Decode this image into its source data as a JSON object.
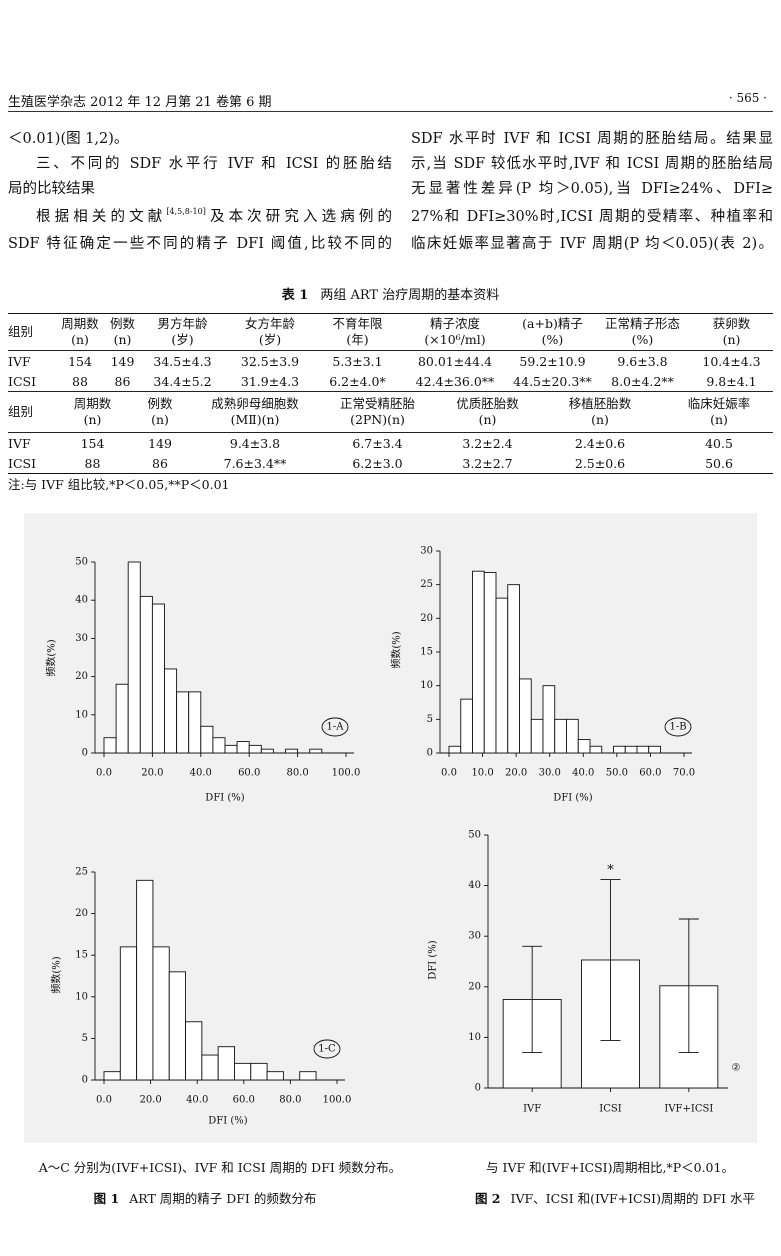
{
  "header": {
    "journal": "生殖医学杂志 2012 年 12 月第 21 卷第 6 期",
    "page": "· 565 ·"
  },
  "body": {
    "left": [
      "＜0.01)(图 1,2)。",
      "三、不同的 SDF 水平行 IVF 和 ICSI 的胚胎结",
      "局的比较结果",
      {
        "before": "根据相关的文献",
        "ref": "[4,5,8-10]",
        "after": "及本次研究入选病例的"
      },
      "SDF 特征确定一些不同的精子 DFI 阈值,比较不同的"
    ],
    "right": [
      "SDF 水平时 IVF 和 ICSI 周期的胚胎结局。结果显",
      "示,当 SDF 较低水平时,IVF 和 ICSI 周期的胚胎结局",
      "无显著性差异(P 均＞0.05),当 DFI≥24%、DFI≥",
      "27%和 DFI≥30%时,ICSI 周期的受精率、种植率和",
      "临床妊娠率显著高于 IVF 周期(P 均＜0.05)(表 2)。"
    ]
  },
  "table": {
    "label": "表 1",
    "title": "两组 ART 治疗周期的基本资料",
    "part1": {
      "columns": [
        [
          "组别"
        ],
        [
          "周期数",
          "(n)"
        ],
        [
          "例数",
          "(n)"
        ],
        [
          "男方年龄",
          "(岁)"
        ],
        [
          "女方年龄",
          "(岁)"
        ],
        [
          "不育年限",
          "(年)"
        ],
        [
          "精子浓度",
          "(×10⁶/ml)"
        ],
        [
          "(a+b)精子",
          "(%)"
        ],
        [
          "正常精子形态",
          "(%)"
        ],
        [
          "获卵数",
          "(n)"
        ]
      ],
      "rows": [
        [
          "IVF",
          "154",
          "149",
          "34.5±4.3",
          "32.5±3.9",
          "5.3±3.1",
          "80.01±44.4",
          "59.2±10.9",
          "9.6±3.8",
          "10.4±4.3"
        ],
        [
          "ICSI",
          "88",
          "86",
          "34.4±5.2",
          "31.9±4.3",
          "6.2±4.0*",
          "42.4±36.0**",
          "44.5±20.3**",
          "8.0±4.2**",
          "9.8±4.1"
        ]
      ]
    },
    "part2": {
      "columns": [
        [
          "组别"
        ],
        [
          "周期数",
          "(n)"
        ],
        [
          "例数",
          "(n)"
        ],
        [
          "成熟卵母细胞数",
          "(MⅡ)(n)"
        ],
        [
          "正常受精胚胎",
          "(2PN)(n)"
        ],
        [
          "优质胚胎数",
          "(n)"
        ],
        [
          "移植胚胎数",
          "(n)"
        ],
        [
          "临床妊娠率",
          "(n)"
        ]
      ],
      "rows": [
        [
          "IVF",
          "154",
          "149",
          "9.4±3.8",
          "6.7±3.4",
          "3.2±2.4",
          "2.4±0.6",
          "40.5"
        ],
        [
          "ICSI",
          "88",
          "86",
          "7.6±3.4**",
          "6.2±3.0",
          "3.2±2.7",
          "2.5±0.6",
          "50.6"
        ]
      ]
    },
    "note": "注:与 IVF 组比较,*P＜0.05,**P＜0.01"
  },
  "figure1": {
    "panels": [
      {
        "type": "histogram",
        "panel_label": "1-A",
        "ylabel": "频数(%)",
        "xlabel": "DFI (%)",
        "bins": [
          0,
          5,
          10,
          15,
          20,
          25,
          30,
          35,
          40,
          45,
          50,
          55,
          60,
          65,
          70,
          75,
          80,
          85,
          90
        ],
        "values": [
          4,
          18,
          50,
          41,
          39,
          22,
          16,
          16,
          7,
          4,
          2,
          3,
          2,
          1,
          0,
          1,
          0,
          1
        ],
        "xlim": [
          0,
          100
        ],
        "ylim": [
          0,
          50
        ],
        "xticks": [
          {
            "value": 0,
            "label": "0.0"
          },
          {
            "value": 20,
            "label": "20.0"
          },
          {
            "value": 40,
            "label": "40.0"
          },
          {
            "value": 60,
            "label": "60.0"
          },
          {
            "value": 80,
            "label": "80.0"
          },
          {
            "value": 100,
            "label": "100.0"
          }
        ],
        "yticks": [
          0,
          10,
          20,
          30,
          40,
          50
        ]
      },
      {
        "type": "histogram",
        "panel_label": "1-B",
        "ylabel": "频数(%)",
        "xlabel": "DFI (%)",
        "bins": [
          0,
          3.5,
          7,
          10.5,
          14,
          17.5,
          21,
          24.5,
          28,
          31.5,
          35,
          38.5,
          42,
          45.5,
          49,
          52.5,
          56,
          59.5,
          63
        ],
        "values": [
          1,
          8,
          27,
          26.8,
          23,
          25,
          11,
          5,
          10,
          5,
          5,
          2,
          1,
          0,
          1,
          1,
          1,
          1
        ],
        "xlim": [
          0,
          70
        ],
        "ylim": [
          0,
          30
        ],
        "xticks": [
          {
            "value": 0,
            "label": "0.0"
          },
          {
            "value": 10,
            "label": "10.0"
          },
          {
            "value": 20,
            "label": "20.0"
          },
          {
            "value": 30,
            "label": "30.0"
          },
          {
            "value": 40,
            "label": "40.0"
          },
          {
            "value": 50,
            "label": "50.0"
          },
          {
            "value": 60,
            "label": "60.0"
          },
          {
            "value": 70,
            "label": "70.0"
          }
        ],
        "yticks": [
          0,
          5,
          10,
          15,
          20,
          25,
          30
        ]
      },
      {
        "type": "histogram",
        "panel_label": "1-C",
        "ylabel": "频数(%)",
        "xlabel": "DFI (%)",
        "bins": [
          0,
          7,
          14,
          21,
          28,
          35,
          42,
          49,
          56,
          63,
          70,
          77,
          84,
          91
        ],
        "values": [
          1,
          16,
          24,
          16,
          13,
          7,
          3,
          4,
          2,
          2,
          1,
          0,
          1
        ],
        "xlim": [
          0,
          100
        ],
        "ylim": [
          0,
          25
        ],
        "xticks": [
          {
            "value": 0,
            "label": "0.0"
          },
          {
            "value": 20,
            "label": "20.0"
          },
          {
            "value": 40,
            "label": "40.0"
          },
          {
            "value": 60,
            "label": "60.0"
          },
          {
            "value": 80,
            "label": "80.0"
          },
          {
            "value": 100,
            "label": "100.0"
          }
        ],
        "yticks": [
          0,
          5,
          10,
          15,
          20,
          25
        ]
      }
    ],
    "caption_note": "A～C 分别为(IVF+ICSI)、IVF 和 ICSI 周期的 DFI 频数分布。",
    "caption_label": "图 1",
    "caption": "ART 周期的精子 DFI 的频数分布"
  },
  "figure2": {
    "chart": {
      "type": "bar",
      "panel_label": "②",
      "ylabel": "DFI (%)",
      "categories": [
        "IVF",
        "ICSI",
        "IVF+ICSI"
      ],
      "values": [
        17.5,
        25.3,
        20.2
      ],
      "errors": [
        10.5,
        15.9,
        13.2
      ],
      "annotation": "*",
      "annotation_category": 1,
      "ylim": [
        0,
        50
      ],
      "yticks": [
        0,
        10,
        20,
        30,
        40,
        50
      ]
    },
    "caption_note": "与 IVF 和(IVF+ICSI)周期相比,*P＜0.01。",
    "caption_label": "图 2",
    "caption": "IVF、ICSI 和(IVF+ICSI)周期的 DFI 水平"
  }
}
